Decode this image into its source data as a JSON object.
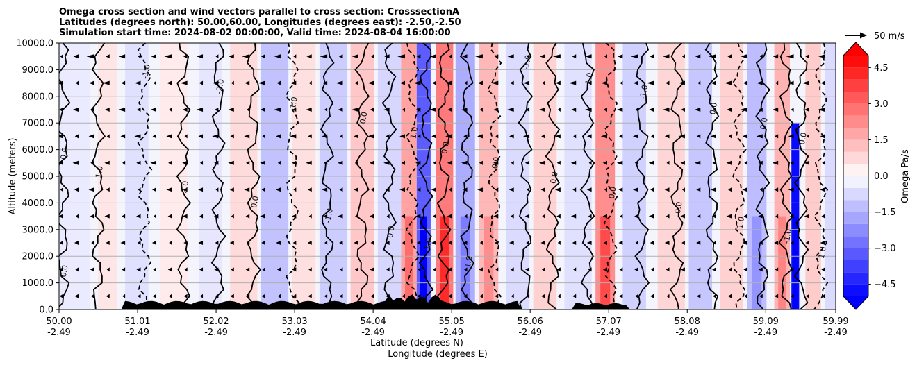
{
  "chart_data": {
    "type": "heatmap",
    "title_lines": [
      "Omega cross section and wind vectors parallel to cross section: CrosssectionA",
      "Latitudes (degrees north): 50.00,60.00, Longitudes (degrees east): -2.50,-2.50",
      "Simulation start time: 2024-08-02 00:00:00, Valid time: 2024-08-04 16:00:00"
    ],
    "ylabel": "Altitude (meters)",
    "xlabel_line1": "Latitude (degrees N)",
    "xlabel_line2": "Longitude (degrees E)",
    "y_ticks": [
      "0.0",
      "1000.0",
      "2000.0",
      "3000.0",
      "4000.0",
      "5000.0",
      "6000.0",
      "7000.0",
      "8000.0",
      "9000.0",
      "10000.0"
    ],
    "ylim": [
      0,
      10000
    ],
    "x_ticks": [
      {
        "lat": "50.00",
        "lon": "-2.49"
      },
      {
        "lat": "51.01",
        "lon": "-2.49"
      },
      {
        "lat": "52.02",
        "lon": "-2.49"
      },
      {
        "lat": "53.03",
        "lon": "-2.49"
      },
      {
        "lat": "54.04",
        "lon": "-2.49"
      },
      {
        "lat": "55.05",
        "lon": "-2.49"
      },
      {
        "lat": "56.06",
        "lon": "-2.49"
      },
      {
        "lat": "57.07",
        "lon": "-2.49"
      },
      {
        "lat": "58.08",
        "lon": "-2.49"
      },
      {
        "lat": "59.09",
        "lon": "-2.49"
      },
      {
        "lat": "59.99",
        "lon": "-2.49"
      }
    ],
    "xlim": [
      50.0,
      59.99
    ],
    "colorbar": {
      "label": "Omega Pa/s",
      "ticks": [
        "4.5",
        "3.0",
        "1.5",
        "0.0",
        "−1.5",
        "−3.0",
        "−4.5"
      ],
      "range": [
        -5.0,
        5.0
      ],
      "extend": "both"
    },
    "vector_key": {
      "label": "50 m/s"
    },
    "contour_labels": [
      "0.0",
      "1.0",
      "-1.0",
      "2.0",
      "-2.0",
      "0.0",
      "1.0",
      "-1.0",
      "0.0",
      "0.0",
      "1.0",
      "-1.0",
      "0.0",
      "1.0",
      "0.0",
      "-1.0",
      "0.0",
      "1.0",
      "0.0",
      "-1.0",
      "0.0",
      "0.0",
      "1.0",
      "0.0",
      "-1.0",
      "0.0",
      "1.0",
      "0.0"
    ],
    "bands": [
      {
        "lat": 50.0,
        "w": 0.4,
        "omega": -0.4,
        "top": 10000
      },
      {
        "lat": 50.5,
        "w": 0.25,
        "omega": 0.5,
        "top": 10000
      },
      {
        "lat": 50.85,
        "w": 0.3,
        "omega": -0.6,
        "top": 10000
      },
      {
        "lat": 51.3,
        "w": 0.35,
        "omega": 0.4,
        "top": 10000
      },
      {
        "lat": 51.8,
        "w": 0.3,
        "omega": -0.5,
        "top": 10000
      },
      {
        "lat": 52.2,
        "w": 0.35,
        "omega": 0.7,
        "top": 10000
      },
      {
        "lat": 52.6,
        "w": 0.35,
        "omega": -1.2,
        "top": 10000
      },
      {
        "lat": 53.0,
        "w": 0.3,
        "omega": 0.6,
        "top": 10000
      },
      {
        "lat": 53.35,
        "w": 0.35,
        "omega": -1.0,
        "top": 10000
      },
      {
        "lat": 53.75,
        "w": 0.3,
        "omega": 1.1,
        "top": 10000
      },
      {
        "lat": 54.1,
        "w": 0.3,
        "omega": -0.8,
        "top": 10000
      },
      {
        "lat": 54.4,
        "w": 0.2,
        "omega": 1.8,
        "top": 10000
      },
      {
        "lat": 54.6,
        "w": 0.18,
        "omega": -3.2,
        "top": 10000
      },
      {
        "lat": 54.85,
        "w": 0.22,
        "omega": 2.6,
        "top": 10000
      },
      {
        "lat": 55.1,
        "w": 0.25,
        "omega": -1.6,
        "top": 10000
      },
      {
        "lat": 55.4,
        "w": 0.25,
        "omega": 1.4,
        "top": 10000
      },
      {
        "lat": 55.75,
        "w": 0.3,
        "omega": -0.7,
        "top": 10000
      },
      {
        "lat": 56.1,
        "w": 0.3,
        "omega": 0.9,
        "top": 10000
      },
      {
        "lat": 56.5,
        "w": 0.35,
        "omega": -0.6,
        "top": 10000
      },
      {
        "lat": 56.9,
        "w": 0.25,
        "omega": 2.2,
        "top": 10000
      },
      {
        "lat": 57.25,
        "w": 0.3,
        "omega": -0.9,
        "top": 10000
      },
      {
        "lat": 57.7,
        "w": 0.35,
        "omega": 0.8,
        "top": 10000
      },
      {
        "lat": 58.1,
        "w": 0.3,
        "omega": -1.1,
        "top": 10000
      },
      {
        "lat": 58.5,
        "w": 0.3,
        "omega": 0.9,
        "top": 10000
      },
      {
        "lat": 58.85,
        "w": 0.25,
        "omega": -1.3,
        "top": 10000
      },
      {
        "lat": 59.2,
        "w": 0.2,
        "omega": 1.5,
        "top": 10000
      },
      {
        "lat": 59.42,
        "w": 0.1,
        "omega": -4.8,
        "top": 7000
      },
      {
        "lat": 59.6,
        "w": 0.2,
        "omega": 1.0,
        "top": 10000
      },
      {
        "lat": 59.85,
        "w": 0.14,
        "omega": -0.7,
        "top": 10000
      }
    ],
    "series": [
      {
        "name": "omega_contour_0",
        "lat": [
          50.05,
          50.5,
          51.1,
          51.6,
          52.05,
          52.5,
          53.0,
          53.45,
          53.9,
          54.25,
          54.55,
          54.72,
          54.95,
          55.25,
          55.6,
          56.0,
          56.35,
          56.8,
          57.1,
          57.5,
          57.95,
          58.4,
          58.75,
          59.05,
          59.35,
          59.55,
          59.8
        ]
      }
    ]
  }
}
